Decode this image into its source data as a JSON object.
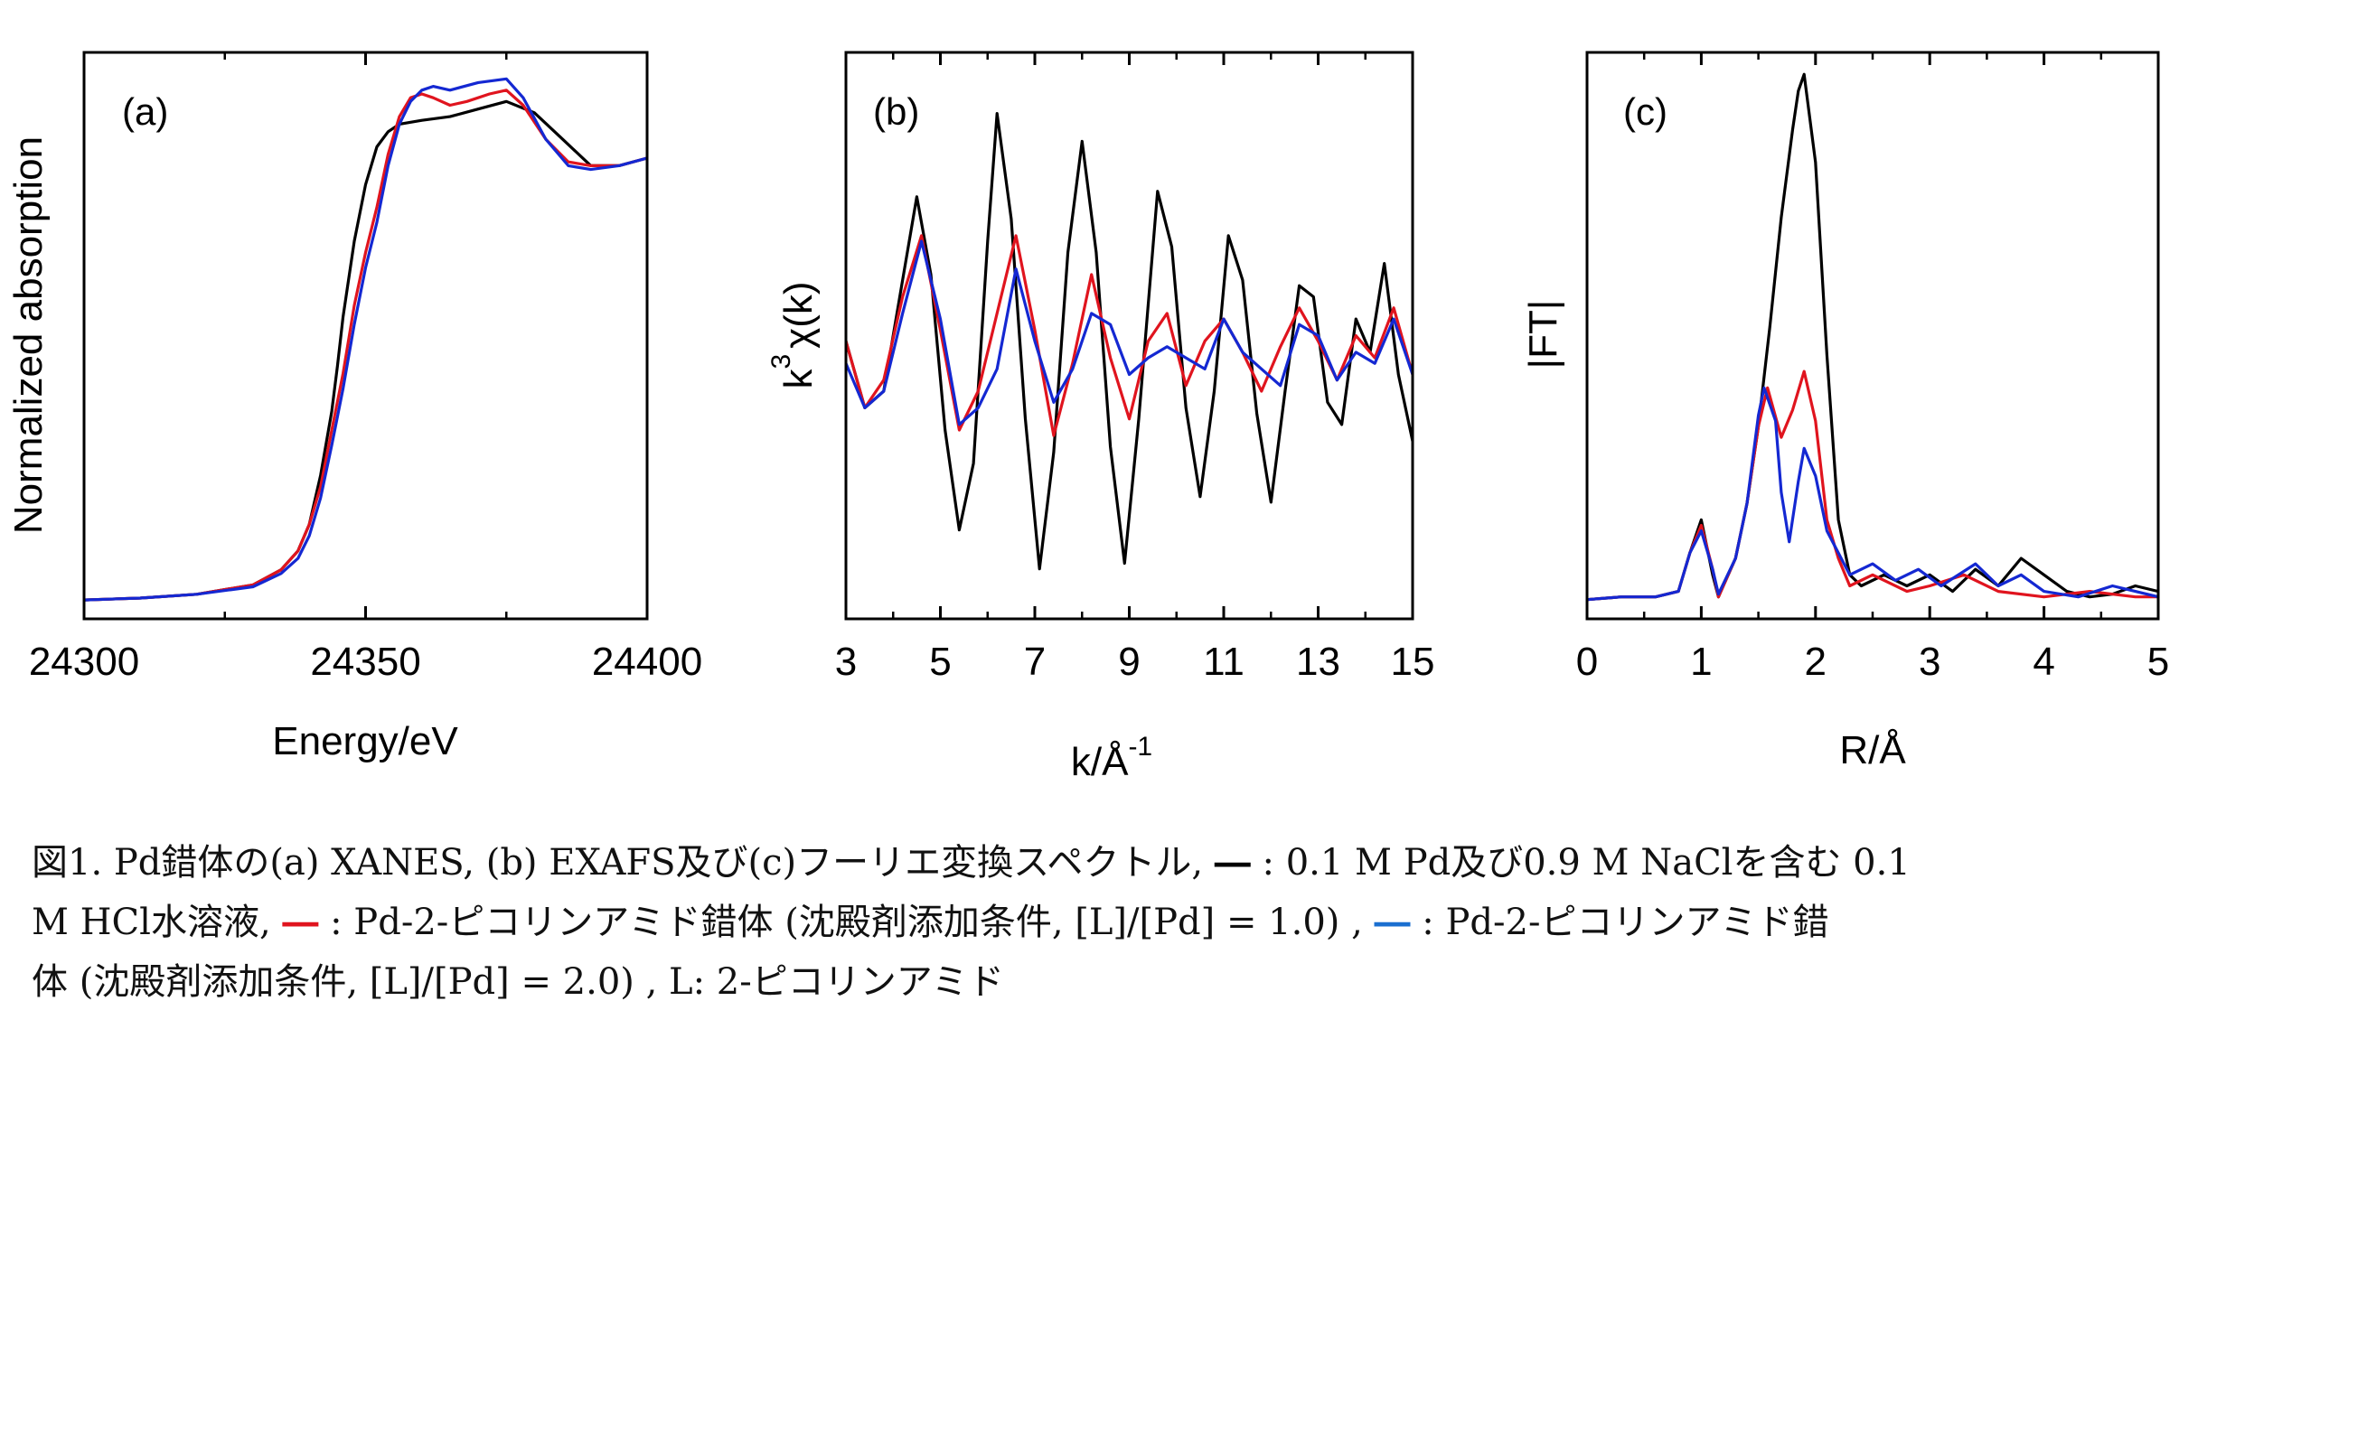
{
  "colors": {
    "series1": "#000000",
    "series2": "#e0141e",
    "series3": "#1428d2"
  },
  "chart_data": [
    {
      "type": "line",
      "panel_label": "(a)",
      "xlabel": "Energy/eV",
      "ylabel": "Normalized absorption",
      "xlim": [
        24300,
        24400
      ],
      "ylim": [
        -0.05,
        1.45
      ],
      "xticks": [
        24300,
        24350,
        24400
      ],
      "xtick_labels": [
        "24300",
        "24350",
        "24400"
      ],
      "y_tick_labels": false,
      "grid": false,
      "legend": "none",
      "series": [
        {
          "color": "#000000",
          "x": [
            24300,
            24310,
            24320,
            24330,
            24335,
            24338,
            24340,
            24342,
            24344,
            24345,
            24346,
            24348,
            24350,
            24352,
            24354,
            24356,
            24360,
            24365,
            24370,
            24375,
            24380,
            24385,
            24390,
            24395,
            24400
          ],
          "y": [
            0.0,
            0.005,
            0.015,
            0.04,
            0.08,
            0.13,
            0.2,
            0.33,
            0.5,
            0.62,
            0.75,
            0.95,
            1.1,
            1.2,
            1.24,
            1.26,
            1.27,
            1.28,
            1.3,
            1.32,
            1.29,
            1.22,
            1.15,
            1.15,
            1.17
          ]
        },
        {
          "color": "#e0141e",
          "x": [
            24300,
            24310,
            24320,
            24330,
            24335,
            24338,
            24340,
            24342,
            24344,
            24346,
            24348,
            24350,
            24352,
            24354,
            24356,
            24358,
            24360,
            24362,
            24365,
            24368,
            24372,
            24375,
            24378,
            24382,
            24386,
            24390,
            24395,
            24400
          ],
          "y": [
            0.0,
            0.005,
            0.015,
            0.04,
            0.08,
            0.13,
            0.2,
            0.3,
            0.45,
            0.6,
            0.78,
            0.92,
            1.04,
            1.18,
            1.28,
            1.33,
            1.34,
            1.33,
            1.31,
            1.32,
            1.34,
            1.35,
            1.31,
            1.22,
            1.16,
            1.15,
            1.15,
            1.17
          ]
        },
        {
          "color": "#1428d2",
          "x": [
            24300,
            24310,
            24320,
            24330,
            24335,
            24338,
            24340,
            24342,
            24344,
            24346,
            24348,
            24350,
            24352,
            24354,
            24356,
            24358,
            24360,
            24362,
            24365,
            24370,
            24375,
            24378,
            24382,
            24386,
            24390,
            24395,
            24400
          ],
          "y": [
            0.0,
            0.005,
            0.015,
            0.035,
            0.07,
            0.11,
            0.17,
            0.27,
            0.41,
            0.56,
            0.73,
            0.88,
            1.0,
            1.15,
            1.26,
            1.32,
            1.35,
            1.36,
            1.35,
            1.37,
            1.38,
            1.33,
            1.22,
            1.15,
            1.14,
            1.15,
            1.17
          ]
        }
      ]
    },
    {
      "type": "line",
      "panel_label": "(b)",
      "xlabel_main": "k/Å",
      "xlabel_sup": "-1",
      "ylabel_main": "k",
      "ylabel_sup": "3",
      "ylabel_tail": "χ(k)",
      "xlim": [
        3,
        15
      ],
      "ylim": [
        -4.6,
        5.6
      ],
      "xticks": [
        3,
        5,
        7,
        9,
        11,
        13,
        15
      ],
      "xtick_labels": [
        "3",
        "5",
        "7",
        "9",
        "11",
        "13",
        "15"
      ],
      "y_tick_labels": false,
      "grid": false,
      "legend": "none",
      "series": [
        {
          "color": "#000000",
          "x": [
            3,
            3.4,
            3.8,
            4.2,
            4.5,
            4.8,
            5.1,
            5.4,
            5.7,
            6.0,
            6.2,
            6.5,
            6.8,
            7.1,
            7.4,
            7.7,
            8.0,
            8.3,
            8.6,
            8.9,
            9.2,
            9.6,
            9.9,
            10.2,
            10.5,
            10.8,
            11.1,
            11.4,
            11.7,
            12.0,
            12.3,
            12.6,
            12.9,
            13.2,
            13.5,
            13.8,
            14.1,
            14.4,
            14.7,
            15.0
          ],
          "y": [
            0.4,
            -0.8,
            -0.5,
            1.5,
            3.0,
            1.6,
            -1.2,
            -3.0,
            -1.8,
            2.2,
            4.5,
            2.6,
            -1.0,
            -3.7,
            -1.6,
            2.0,
            4.0,
            2.0,
            -1.5,
            -3.6,
            -1.0,
            3.1,
            2.1,
            -0.8,
            -2.4,
            -0.5,
            2.3,
            1.5,
            -0.9,
            -2.5,
            -0.5,
            1.4,
            1.2,
            -0.7,
            -1.1,
            0.8,
            0.2,
            1.8,
            -0.2,
            -1.4
          ]
        },
        {
          "color": "#e0141e",
          "x": [
            3,
            3.4,
            3.8,
            4.2,
            4.6,
            5.0,
            5.4,
            5.8,
            6.2,
            6.6,
            7.0,
            7.4,
            7.8,
            8.2,
            8.6,
            9.0,
            9.4,
            9.8,
            10.2,
            10.6,
            11.0,
            11.4,
            11.8,
            12.2,
            12.6,
            13.0,
            13.4,
            13.8,
            14.2,
            14.6,
            15.0
          ],
          "y": [
            0.4,
            -0.8,
            -0.3,
            1.2,
            2.3,
            0.6,
            -1.2,
            -0.5,
            0.9,
            2.3,
            0.6,
            -1.3,
            0.0,
            1.6,
            0.1,
            -1.0,
            0.4,
            0.9,
            -0.4,
            0.4,
            0.8,
            0.2,
            -0.5,
            0.3,
            1.0,
            0.4,
            -0.3,
            0.5,
            0.1,
            1.0,
            -0.2
          ]
        },
        {
          "color": "#1428d2",
          "x": [
            3,
            3.4,
            3.8,
            4.2,
            4.6,
            5.0,
            5.4,
            5.8,
            6.2,
            6.6,
            7.0,
            7.4,
            7.8,
            8.2,
            8.6,
            9.0,
            9.4,
            9.8,
            10.2,
            10.6,
            11.0,
            11.4,
            11.8,
            12.2,
            12.6,
            13.0,
            13.4,
            13.8,
            14.2,
            14.6,
            15.0
          ],
          "y": [
            0.0,
            -0.8,
            -0.5,
            0.9,
            2.2,
            0.8,
            -1.1,
            -0.8,
            -0.1,
            1.7,
            0.4,
            -0.7,
            -0.1,
            0.9,
            0.7,
            -0.2,
            0.1,
            0.3,
            0.1,
            -0.1,
            0.8,
            0.2,
            -0.1,
            -0.4,
            0.7,
            0.5,
            -0.3,
            0.2,
            0.0,
            0.8,
            -0.2
          ]
        }
      ]
    },
    {
      "type": "line",
      "panel_label": "(c)",
      "xlabel": "R/Å",
      "ylabel": "|FT|",
      "xlim": [
        0,
        5
      ],
      "ylim": [
        -0.3,
        10
      ],
      "xticks": [
        0,
        1,
        2,
        3,
        4,
        5
      ],
      "xtick_labels": [
        "0",
        "1",
        "2",
        "3",
        "4",
        "5"
      ],
      "y_tick_labels": false,
      "grid": false,
      "legend": "none",
      "series": [
        {
          "color": "#000000",
          "x": [
            0,
            0.3,
            0.6,
            0.8,
            0.9,
            1.0,
            1.1,
            1.15,
            1.3,
            1.4,
            1.5,
            1.6,
            1.7,
            1.8,
            1.85,
            1.9,
            2.0,
            2.1,
            2.2,
            2.3,
            2.4,
            2.6,
            2.8,
            3.0,
            3.2,
            3.4,
            3.6,
            3.8,
            4.0,
            4.2,
            4.4,
            4.6,
            4.8,
            5.0
          ],
          "y": [
            0.05,
            0.1,
            0.1,
            0.2,
            0.9,
            1.5,
            0.5,
            0.1,
            0.8,
            1.8,
            3.2,
            5.0,
            7.0,
            8.6,
            9.3,
            9.6,
            8.0,
            4.5,
            1.5,
            0.5,
            0.3,
            0.5,
            0.3,
            0.5,
            0.2,
            0.6,
            0.3,
            0.8,
            0.5,
            0.2,
            0.1,
            0.15,
            0.3,
            0.2
          ]
        },
        {
          "color": "#e0141e",
          "x": [
            0,
            0.3,
            0.6,
            0.8,
            0.9,
            1.0,
            1.1,
            1.15,
            1.3,
            1.4,
            1.5,
            1.58,
            1.7,
            1.8,
            1.9,
            2.0,
            2.1,
            2.2,
            2.3,
            2.5,
            2.8,
            3.0,
            3.3,
            3.6,
            4.0,
            4.4,
            4.8,
            5.0
          ],
          "y": [
            0.05,
            0.1,
            0.1,
            0.2,
            0.9,
            1.4,
            0.6,
            0.1,
            0.8,
            1.8,
            3.2,
            3.9,
            3.0,
            3.5,
            4.2,
            3.3,
            1.5,
            0.8,
            0.3,
            0.5,
            0.2,
            0.3,
            0.5,
            0.2,
            0.1,
            0.2,
            0.1,
            0.1
          ]
        },
        {
          "color": "#1428d2",
          "x": [
            0,
            0.3,
            0.6,
            0.8,
            0.9,
            1.0,
            1.1,
            1.15,
            1.3,
            1.4,
            1.5,
            1.55,
            1.65,
            1.7,
            1.77,
            1.85,
            1.9,
            2.0,
            2.1,
            2.2,
            2.3,
            2.5,
            2.7,
            2.9,
            3.1,
            3.4,
            3.6,
            3.8,
            4.0,
            4.3,
            4.6,
            4.8,
            5.0
          ],
          "y": [
            0.05,
            0.1,
            0.1,
            0.2,
            0.9,
            1.3,
            0.6,
            0.15,
            0.8,
            1.8,
            3.4,
            3.9,
            3.3,
            2.0,
            1.1,
            2.2,
            2.8,
            2.3,
            1.3,
            0.9,
            0.5,
            0.7,
            0.4,
            0.6,
            0.3,
            0.7,
            0.3,
            0.5,
            0.2,
            0.1,
            0.3,
            0.2,
            0.1
          ]
        }
      ]
    }
  ],
  "caption": {
    "line1_a": "図1. Pd錯体の(a) XANES,  (b) EXAFS及び(c)フーリエ変換スペクトル,  ",
    "dash1": "―",
    "line1_b": " : 0.1  M  Pd及び0.9  M  NaClを含む  0.1",
    "line2_a": "M  HCl水溶液,  ",
    "dash2": "―",
    "line2_b": " : Pd-2-ピコリンアミド錯体  (沈殿剤添加条件,  [L]/[Pd] = 1.0)  ,  ",
    "dash3": "―",
    "line2_c": " :  Pd-2-ピコリンアミド錯",
    "line3": "体  (沈殿剤添加条件,  [L]/[Pd] = 2.0)  ,  L: 2-ピコリンアミド"
  }
}
